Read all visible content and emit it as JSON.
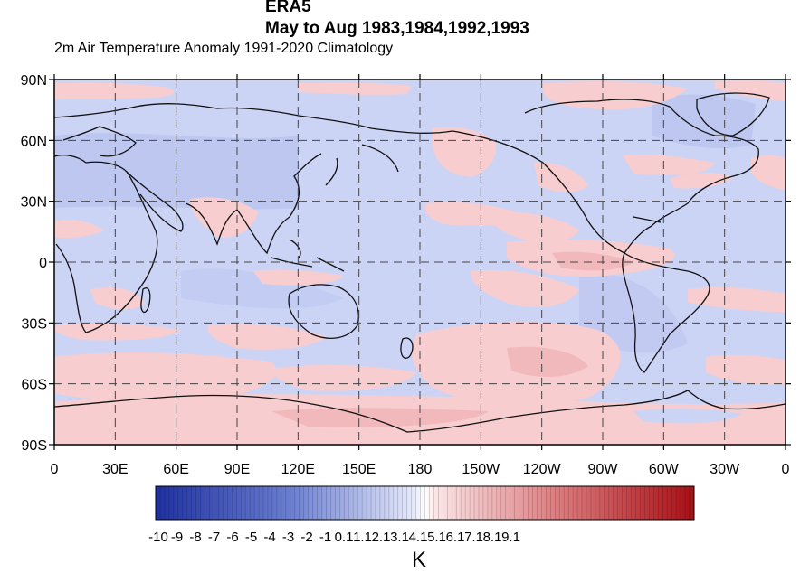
{
  "header": {
    "source": "ERA5",
    "period": "May to Aug 1983,1984,1992,1993",
    "description": "2m Air Temperature Anomaly  1991-2020 Climatology"
  },
  "map": {
    "lat_labels": [
      "90N",
      "60N",
      "30N",
      "0",
      "30S",
      "60S",
      "90S"
    ],
    "lon_labels": [
      "0",
      "30E",
      "60E",
      "90E",
      "120E",
      "150E",
      "180",
      "150W",
      "120W",
      "90W",
      "60W",
      "30W",
      "0"
    ],
    "colors": {
      "frame": "#000000",
      "grid": "#444444",
      "coast": "#111111"
    }
  },
  "colorbar": {
    "labels": [
      "-10",
      "-9",
      "-8",
      "-7",
      "-6",
      "-5",
      "-4",
      "-3",
      "-2",
      "-1",
      "0.1",
      "1.1",
      "2.1",
      "3.1",
      "4.1",
      "5.1",
      "6.1",
      "7.1",
      "8.1",
      "9.1"
    ],
    "unit": "K",
    "colors": {
      "cold": "#2a3da8",
      "neutral": "#ffffff",
      "warm": "#b01818"
    }
  }
}
